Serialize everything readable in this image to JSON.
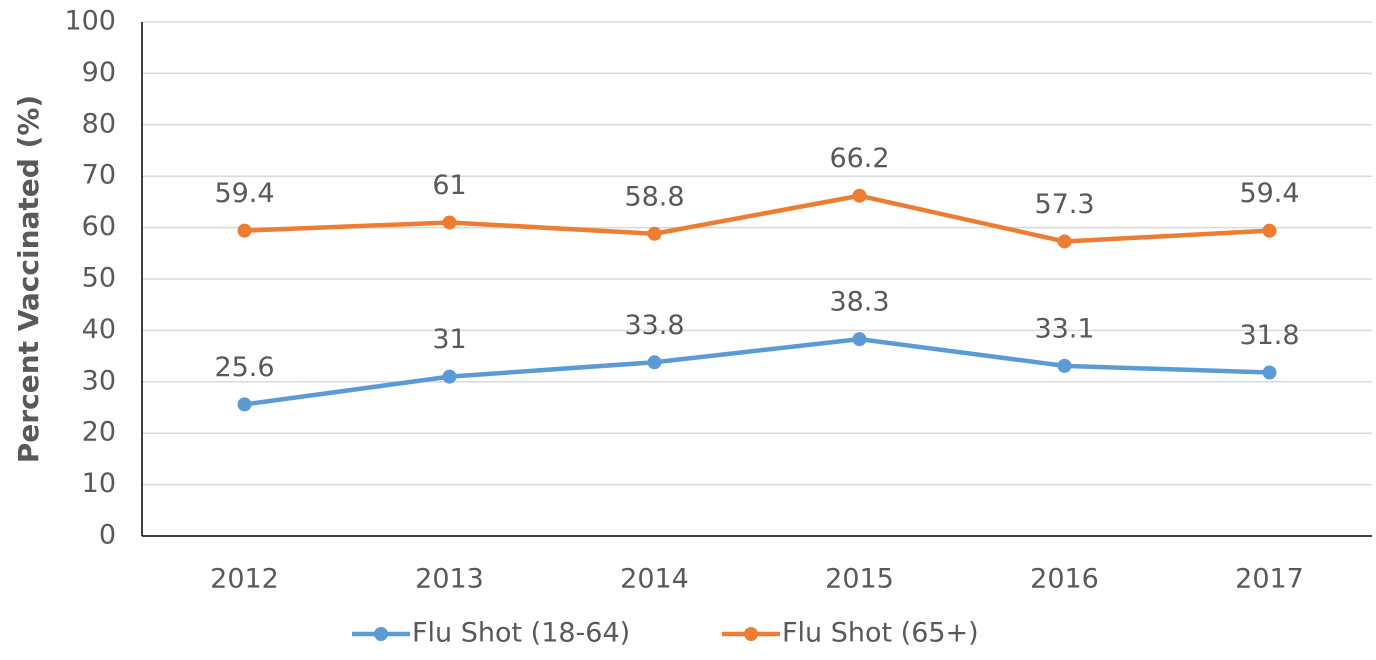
{
  "chart_data": {
    "type": "line",
    "y_label": "Percent Vaccinated (%)",
    "categories": [
      "2012",
      "2013",
      "2014",
      "2015",
      "2016",
      "2017"
    ],
    "series": [
      {
        "name": "Flu Shot (18-64)",
        "color": "#5b9bd5",
        "values": [
          25.6,
          31,
          33.8,
          38.3,
          33.1,
          31.8
        ]
      },
      {
        "name": "Flu Shot (65+)",
        "color": "#ed7d31",
        "values": [
          59.4,
          61,
          58.8,
          66.2,
          57.3,
          59.4
        ]
      }
    ],
    "ylim": [
      0,
      100
    ],
    "yticks": [
      0,
      10,
      20,
      30,
      40,
      50,
      60,
      70,
      80,
      90,
      100
    ],
    "grid": true,
    "legend": "bottom"
  }
}
